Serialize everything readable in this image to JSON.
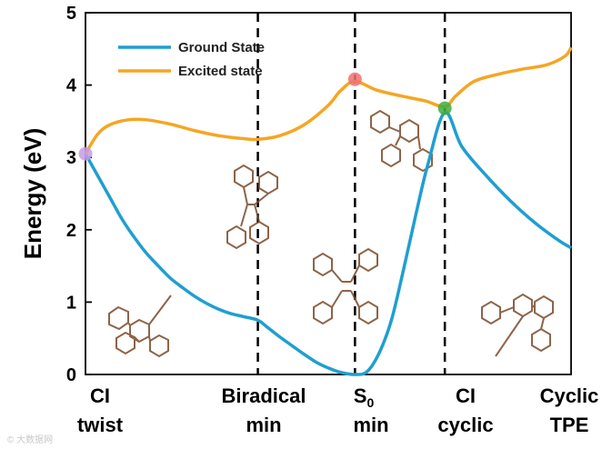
{
  "chart_data": {
    "type": "line",
    "title": "",
    "xlabel": "",
    "ylabel": "Energy (eV)",
    "ylim": [
      0,
      5
    ],
    "yticks": [
      "0",
      "1",
      "2",
      "3",
      "4",
      "5"
    ],
    "xlim": [
      0,
      4
    ],
    "categories": [
      {
        "line1": "CI",
        "line2": "twist",
        "x": 0
      },
      {
        "line1": "Biradical",
        "line2": "min",
        "x": 1.42
      },
      {
        "line1": "S",
        "sub": "0",
        "line2": "min",
        "x": 2.22
      },
      {
        "line1": "CI",
        "line2": "cyclic",
        "x": 2.96
      },
      {
        "line1": "Cyclic",
        "line2": "TPE",
        "x": 4
      }
    ],
    "dashed_lines_x": [
      1.42,
      2.22,
      2.96
    ],
    "legend": {
      "position": "top-left"
    },
    "series": [
      {
        "name": "Ground State",
        "color": "#1f9fd0",
        "x": [
          0,
          0.1,
          0.2,
          0.3,
          0.4,
          0.5,
          0.6,
          0.7,
          0.8,
          0.9,
          1.0,
          1.1,
          1.2,
          1.3,
          1.42,
          1.5,
          1.6,
          1.7,
          1.8,
          1.9,
          2.0,
          2.1,
          2.22,
          2.32,
          2.42,
          2.52,
          2.62,
          2.72,
          2.82,
          2.96,
          3.1,
          3.3,
          3.5,
          3.7,
          3.9,
          4.0
        ],
        "y": [
          3.05,
          2.75,
          2.45,
          2.15,
          1.9,
          1.68,
          1.5,
          1.33,
          1.2,
          1.08,
          0.98,
          0.9,
          0.84,
          0.8,
          0.75,
          0.65,
          0.52,
          0.4,
          0.28,
          0.17,
          0.09,
          0.03,
          0.0,
          0.04,
          0.3,
          0.75,
          1.45,
          2.2,
          2.9,
          3.62,
          3.15,
          2.75,
          2.4,
          2.1,
          1.85,
          1.75
        ]
      },
      {
        "name": "Excited state",
        "color": "#f5a623",
        "x": [
          0,
          0.1,
          0.2,
          0.35,
          0.5,
          0.7,
          0.9,
          1.1,
          1.3,
          1.42,
          1.6,
          1.8,
          2.0,
          2.1,
          2.22,
          2.4,
          2.6,
          2.8,
          2.96,
          3.05,
          3.2,
          3.4,
          3.6,
          3.8,
          3.95,
          4.0
        ],
        "y": [
          3.05,
          3.32,
          3.45,
          3.52,
          3.52,
          3.46,
          3.37,
          3.3,
          3.26,
          3.25,
          3.3,
          3.45,
          3.72,
          3.92,
          4.05,
          3.93,
          3.85,
          3.78,
          3.7,
          3.85,
          4.05,
          4.15,
          4.22,
          4.28,
          4.4,
          4.52
        ]
      }
    ],
    "markers": [
      {
        "x": 0,
        "y": 3.05,
        "color": "#c79be8"
      },
      {
        "x": 2.22,
        "y": 4.08,
        "color": "#f07070"
      },
      {
        "x": 2.96,
        "y": 3.68,
        "color": "#3fae3f"
      }
    ]
  },
  "watermark": "© 大数据网"
}
